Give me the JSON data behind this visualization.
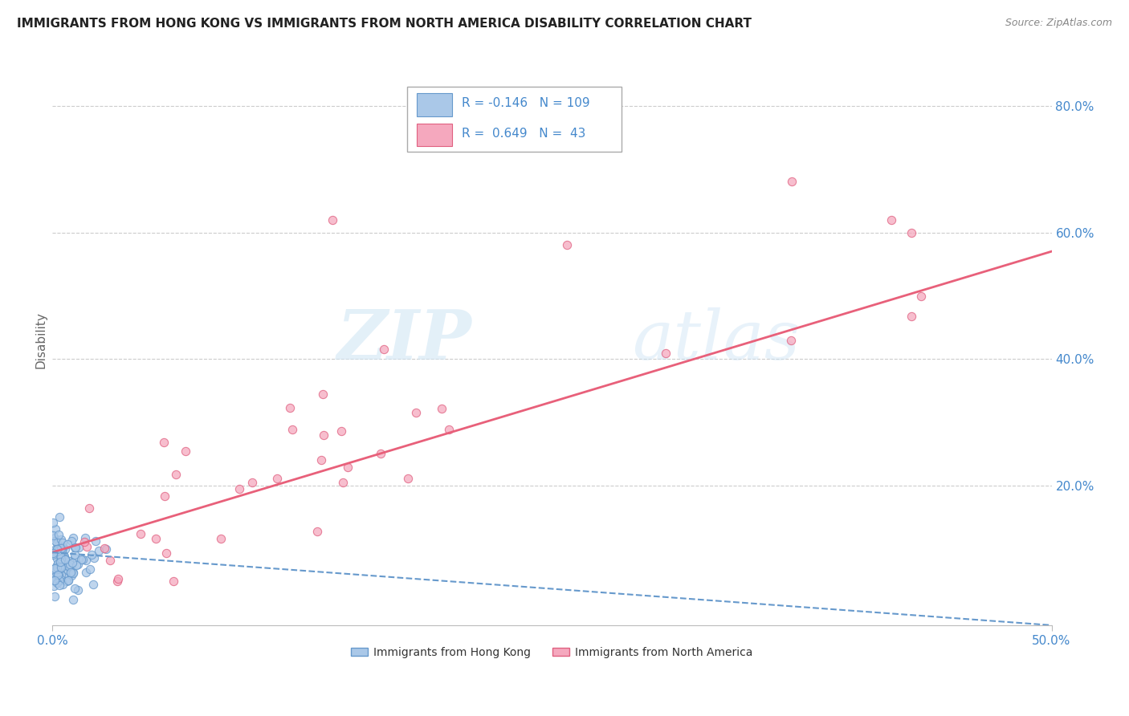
{
  "title": "IMMIGRANTS FROM HONG KONG VS IMMIGRANTS FROM NORTH AMERICA DISABILITY CORRELATION CHART",
  "source": "Source: ZipAtlas.com",
  "ylabel": "Disability",
  "ytick_labels": [
    "20.0%",
    "40.0%",
    "60.0%",
    "80.0%"
  ],
  "ytick_values": [
    0.2,
    0.4,
    0.6,
    0.8
  ],
  "xtick_labels": [
    "0.0%",
    "50.0%"
  ],
  "xtick_values": [
    0.0,
    0.5
  ],
  "xlim": [
    0,
    0.5
  ],
  "ylim": [
    -0.02,
    0.88
  ],
  "color_hk": "#aac8e8",
  "color_hk_edge": "#6699cc",
  "color_na": "#f5a8be",
  "color_na_edge": "#e06080",
  "color_trend_hk": "#6699cc",
  "color_trend_na": "#e8607a",
  "color_text_blue": "#4488cc",
  "color_grid": "#cccccc",
  "background": "#ffffff",
  "watermark_zip": "ZIP",
  "watermark_atlas": "atlas",
  "na_trend_x0": 0.0,
  "na_trend_y0": 0.095,
  "na_trend_x1": 0.5,
  "na_trend_y1": 0.57,
  "hk_trend_x0": 0.0,
  "hk_trend_y0": 0.095,
  "hk_trend_x1": 0.5,
  "hk_trend_y1": -0.02,
  "legend_r1": "R = -0.146",
  "legend_n1": "N = 109",
  "legend_r2": "R =  0.649",
  "legend_n2": "N =  43"
}
